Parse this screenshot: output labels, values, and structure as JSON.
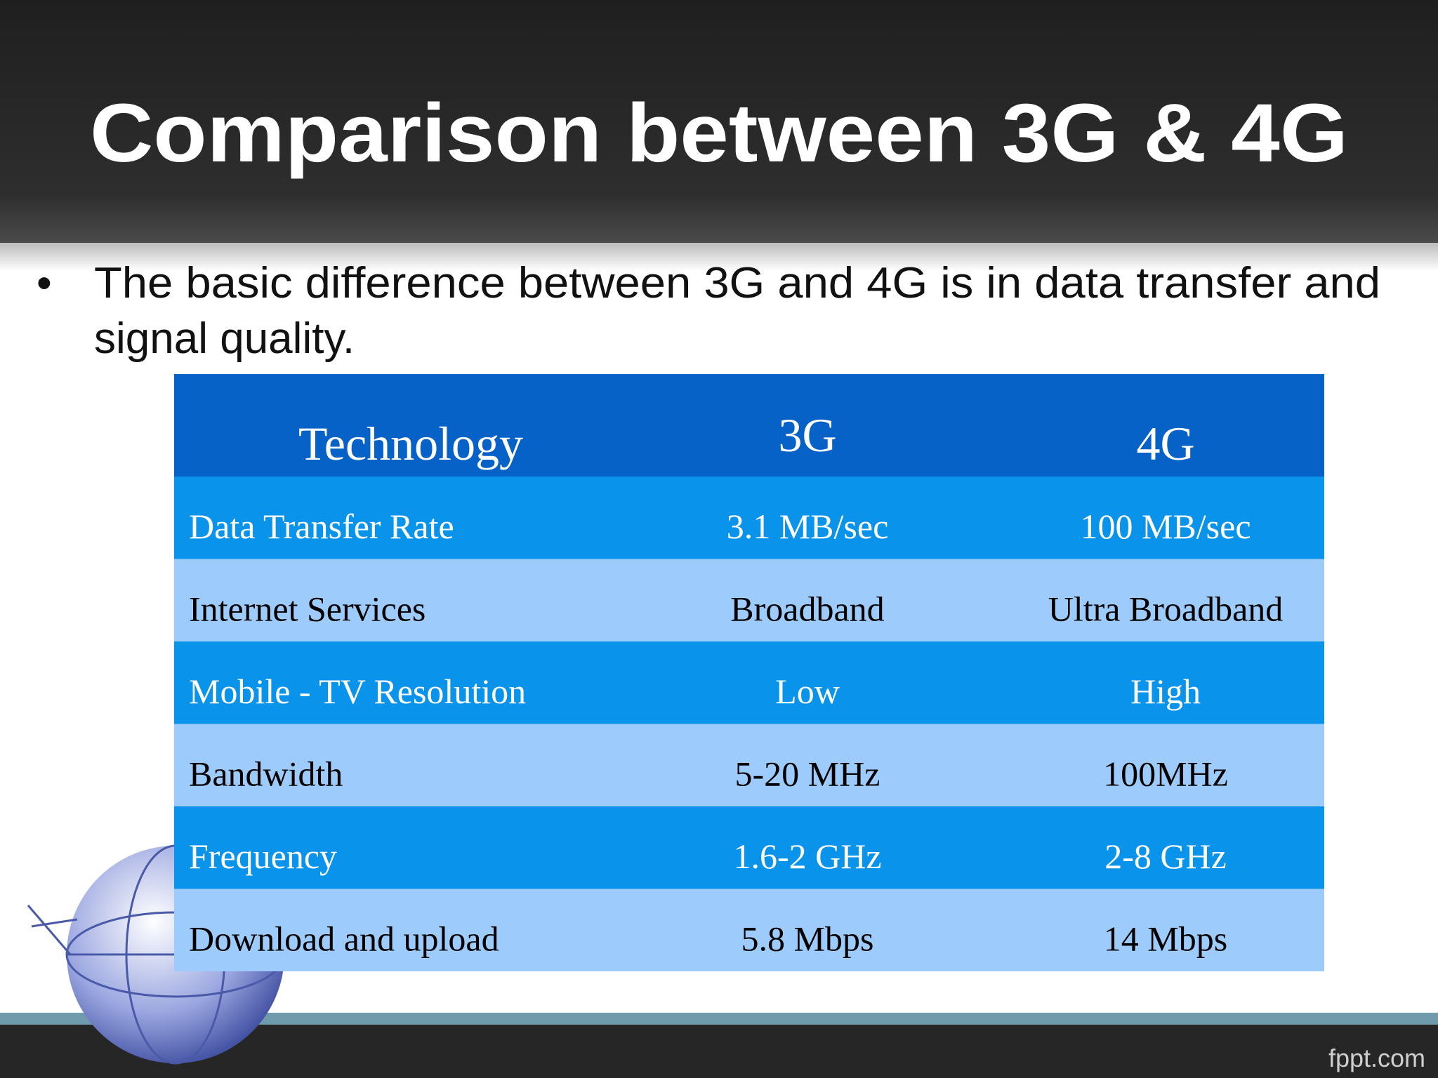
{
  "header": {
    "title": "Comparison between 3G & 4G"
  },
  "bullets": [
    [
      "The basic difference between 3G and 4G is in data transfer and",
      "signal  quality."
    ]
  ],
  "table": {
    "header": [
      "Technology",
      "3G",
      "4G"
    ],
    "rows": [
      [
        "Data Transfer Rate",
        "3.1 MB/sec",
        "100 MB/sec"
      ],
      [
        "Internet Services",
        "Broadband",
        "Ultra Broadband"
      ],
      [
        "Mobile - TV Resolution",
        "Low",
        "High"
      ],
      [
        "Bandwidth",
        "5-20 MHz",
        "100MHz"
      ],
      [
        "Frequency",
        "1.6-2 GHz",
        "2-8 GHz"
      ],
      [
        "Download and upload",
        "5.8 Mbps",
        "14 Mbps"
      ]
    ]
  },
  "footer": {
    "brand": "fppt.com"
  }
}
